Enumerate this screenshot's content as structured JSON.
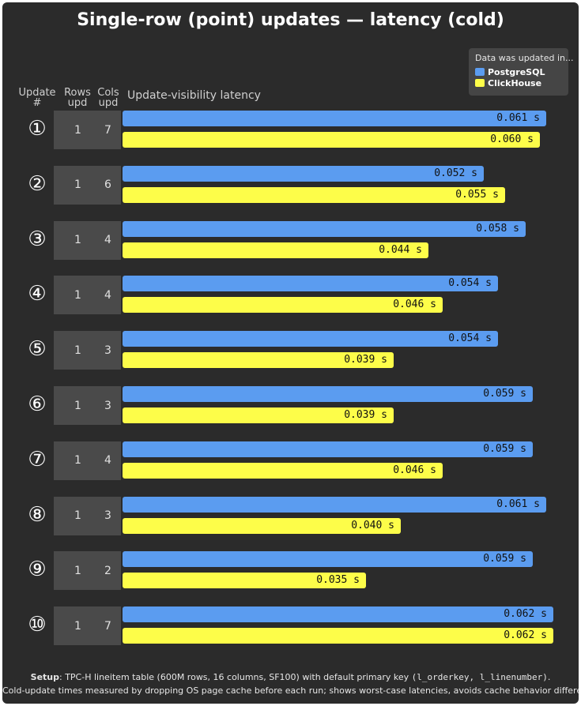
{
  "title": "Single-row (point) updates — latency (cold)",
  "legend": {
    "title": "Data was updated in...",
    "items": [
      {
        "name": "PostgreSQL",
        "color": "#5b9cf0"
      },
      {
        "name": "ClickHouse",
        "color": "#fdfd49"
      }
    ]
  },
  "headers": {
    "update_line1": "Update",
    "update_line2": "#",
    "rows_line1": "Rows",
    "rows_line2": "upd",
    "cols_line1": "Cols",
    "cols_line2": "upd",
    "latency": "Update-visibility latency"
  },
  "chart_data": {
    "type": "bar",
    "orientation": "horizontal",
    "title": "Single-row (point) updates — latency (cold)",
    "xlabel": "Update-visibility latency",
    "unit": "s",
    "categories": [
      "①",
      "②",
      "③",
      "④",
      "⑤",
      "⑥",
      "⑦",
      "⑧",
      "⑨",
      "⑩"
    ],
    "rows_upd": [
      "1",
      "1",
      "1",
      "1",
      "1",
      "1",
      "1",
      "1",
      "1",
      "1"
    ],
    "cols_upd": [
      "7",
      "6",
      "4",
      "4",
      "3",
      "3",
      "4",
      "3",
      "2",
      "7"
    ],
    "series": [
      {
        "name": "PostgreSQL",
        "color": "#5b9cf0",
        "values": [
          0.061,
          0.052,
          0.058,
          0.054,
          0.054,
          0.059,
          0.059,
          0.061,
          0.059,
          0.062
        ],
        "labels": [
          "0.061 s",
          "0.052 s",
          "0.058 s",
          "0.054 s",
          "0.054 s",
          "0.059 s",
          "0.059 s",
          "0.061 s",
          "0.059 s",
          "0.062 s"
        ]
      },
      {
        "name": "ClickHouse",
        "color": "#fdfd49",
        "values": [
          0.06,
          0.055,
          0.044,
          0.046,
          0.039,
          0.039,
          0.046,
          0.04,
          0.035,
          0.062
        ],
        "labels": [
          "0.060 s",
          "0.055 s",
          "0.044 s",
          "0.046 s",
          "0.039 s",
          "0.039 s",
          "0.046 s",
          "0.040 s",
          "0.035 s",
          "0.062 s"
        ]
      }
    ],
    "legend": "top-right",
    "grid": false
  },
  "footer": {
    "setup_label": "Setup",
    "line1": ": TPC-H lineitem table (600M rows, 16 columns, SF100) with default primary key ",
    "line1_code": "(l_orderkey, l_linenumber)",
    "line1_end": ".",
    "line2": "Cold-update times measured by dropping OS page cache before each run; shows worst-case latencies, avoids cache behavior differences."
  }
}
